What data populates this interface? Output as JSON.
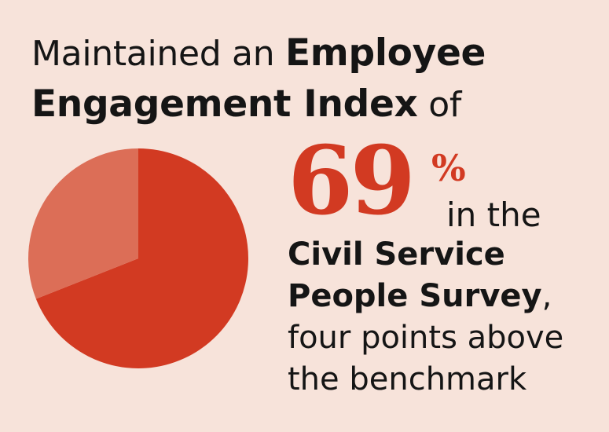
{
  "colors": {
    "background": "#F7E3DA",
    "text": "#151515",
    "accent": "#D23A22",
    "pie_primary": "#D23A22",
    "pie_secondary": "#DC6E57"
  },
  "headline": {
    "part1": "Maintained an ",
    "part2": "Employee",
    "part3": "Engagement Index",
    "part4": " of"
  },
  "stat": {
    "number": "69",
    "percent_symbol": "%",
    "in_the": "in the"
  },
  "survey": {
    "line1": "Civil Service",
    "line2_bold": "People Survey",
    "line2_suffix": ",",
    "line3": "four points above",
    "line4": "the benchmark"
  },
  "chart_data": {
    "type": "pie",
    "values": [
      69,
      31
    ],
    "unit": "%",
    "start_direction": "top",
    "orientation": "clockwise"
  }
}
